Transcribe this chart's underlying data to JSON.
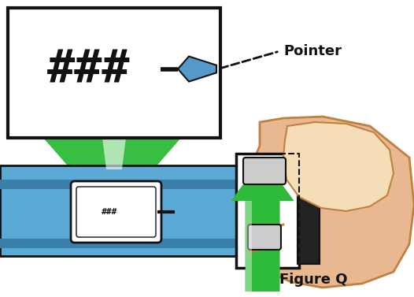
{
  "background_color": "#ffffff",
  "figure_label": "Figure Q",
  "pointer_label": "Pointer",
  "hash_text": "###",
  "blue_color": "#5BAAD5",
  "blue_dark": "#3A7EAA",
  "blue_stripe": "#4A95C0",
  "green_color": "#2EBB3A",
  "green_dark": "#1AAA26",
  "skin_color": "#E8B990",
  "skin_outline": "#C08040",
  "nail_color": "#F5DDB8",
  "white_color": "#FFFFFF",
  "black_color": "#111111",
  "pointer_blue": "#5599CC",
  "gray_light": "#CCCCCC",
  "gray_med": "#AAAAAA"
}
